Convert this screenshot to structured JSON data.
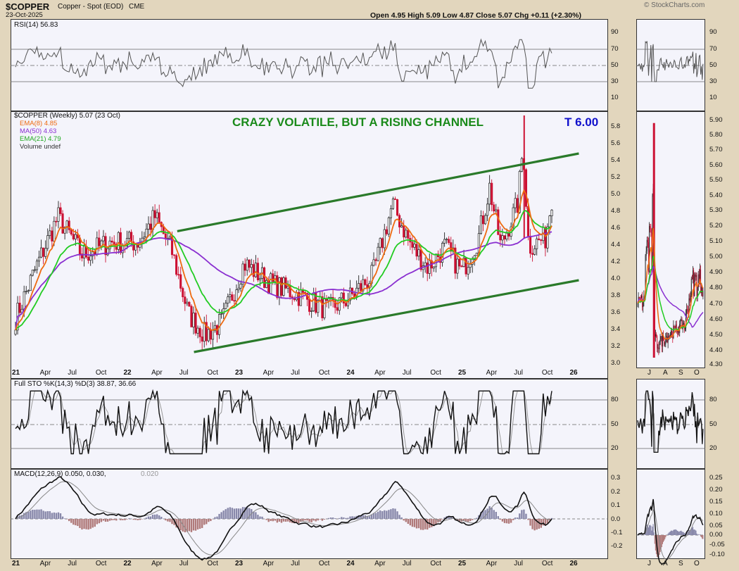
{
  "header": {
    "symbol": "$COPPER",
    "name": "Copper - Spot (EOD)",
    "exchange": "CME",
    "date": "23-Oct-2025",
    "ohlc": "Open 4.95  High 5.09  Low 4.87  Close 5.07  Chg +0.11 (+2.30%)",
    "watermark": "© StockCharts.com"
  },
  "colors": {
    "background": "#e2d6bd",
    "panel": "#f4f4fb",
    "price_up": "#222222",
    "price_down": "#cc1133",
    "ema8": "#ee6a10",
    "ma50": "#8a2fd0",
    "ema21": "#22cc22",
    "channel": "#2a7a2a",
    "annotation": "#1a8a1a",
    "target": "#1010cc",
    "macd_hist": "#8888aa",
    "macd_hist_neg": "#b07a7a"
  },
  "rsi_panel": {
    "label": "RSI(14) 56.83",
    "ticks": [
      "90",
      "70",
      "50",
      "30",
      "10"
    ]
  },
  "price_panel": {
    "legend": [
      "$COPPER (Weekly) 5.07 (23 Oct)",
      "EMA(8) 4.85",
      "MA(50) 4.63",
      "EMA(21) 4.79",
      "Volume undef"
    ],
    "annotation": "CRAZY VOLATILE, BUT A RISING CHANNEL",
    "target": "T 6.00",
    "ticks": [
      "5.8",
      "5.6",
      "5.4",
      "5.2",
      "5.0",
      "4.8",
      "4.6",
      "4.4",
      "4.2",
      "4.0",
      "3.8",
      "3.6",
      "3.4",
      "3.2",
      "3.0"
    ],
    "daily_ticks": [
      "5.90",
      "5.80",
      "5.70",
      "5.60",
      "5.50",
      "5.40",
      "5.30",
      "5.20",
      "5.10",
      "5.00",
      "4.90",
      "4.80",
      "4.70",
      "4.60",
      "4.50",
      "4.40",
      "4.30"
    ]
  },
  "sto_panel": {
    "label": "Full STO %K(14,3) %D(3) 38.87, 36.66",
    "ticks": [
      "80",
      "50",
      "20"
    ]
  },
  "macd_panel": {
    "label_main": "MACD(12,26,9) 0.050, 0.030,",
    "label_hist": "0.020",
    "ticks": [
      "0.3",
      "0.2",
      "0.1",
      "0.0",
      "-0.1",
      "-0.2"
    ],
    "daily_ticks": [
      "0.25",
      "0.20",
      "0.15",
      "0.10",
      "0.05",
      "0.00",
      "-0.05",
      "-0.10"
    ]
  },
  "x_axis": {
    "labels": [
      "21",
      "Apr",
      "Jul",
      "Oct",
      "22",
      "Apr",
      "Jul",
      "Oct",
      "23",
      "Apr",
      "Jul",
      "Oct",
      "24",
      "Apr",
      "Jul",
      "Oct",
      "25",
      "Apr",
      "Jul",
      "Oct",
      "26"
    ],
    "daily_labels": [
      "J",
      "A",
      "S",
      "O"
    ]
  },
  "chart_data": {
    "type": "line",
    "title": "$COPPER (Weekly)",
    "ylim": [
      3.0,
      5.95
    ],
    "price_keypoints": [
      {
        "t": 2021.0,
        "v": 3.55
      },
      {
        "t": 2021.2,
        "v": 4.2
      },
      {
        "t": 2021.38,
        "v": 4.75
      },
      {
        "t": 2021.6,
        "v": 4.3
      },
      {
        "t": 2021.85,
        "v": 4.45
      },
      {
        "t": 2022.1,
        "v": 4.45
      },
      {
        "t": 2022.25,
        "v": 4.75
      },
      {
        "t": 2022.4,
        "v": 4.35
      },
      {
        "t": 2022.55,
        "v": 3.6
      },
      {
        "t": 2022.7,
        "v": 3.35
      },
      {
        "t": 2022.85,
        "v": 3.5
      },
      {
        "t": 2023.05,
        "v": 4.2
      },
      {
        "t": 2023.3,
        "v": 3.95
      },
      {
        "t": 2023.5,
        "v": 3.85
      },
      {
        "t": 2023.8,
        "v": 3.65
      },
      {
        "t": 2024.0,
        "v": 3.8
      },
      {
        "t": 2024.2,
        "v": 4.05
      },
      {
        "t": 2024.38,
        "v": 4.9
      },
      {
        "t": 2024.55,
        "v": 4.4
      },
      {
        "t": 2024.7,
        "v": 4.15
      },
      {
        "t": 2024.85,
        "v": 4.4
      },
      {
        "t": 2025.0,
        "v": 4.1
      },
      {
        "t": 2025.15,
        "v": 4.5
      },
      {
        "t": 2025.25,
        "v": 5.1
      },
      {
        "t": 2025.35,
        "v": 4.4
      },
      {
        "t": 2025.5,
        "v": 4.9
      },
      {
        "t": 2025.55,
        "v": 5.6
      },
      {
        "t": 2025.6,
        "v": 4.4
      },
      {
        "t": 2025.75,
        "v": 4.5
      },
      {
        "t": 2025.82,
        "v": 5.07
      }
    ],
    "channel_upper": [
      {
        "t": 2022.45,
        "v": 4.58
      },
      {
        "t": 2026.05,
        "v": 5.5
      }
    ],
    "channel_lower": [
      {
        "t": 2022.6,
        "v": 3.15
      },
      {
        "t": 2026.05,
        "v": 4.0
      }
    ]
  }
}
